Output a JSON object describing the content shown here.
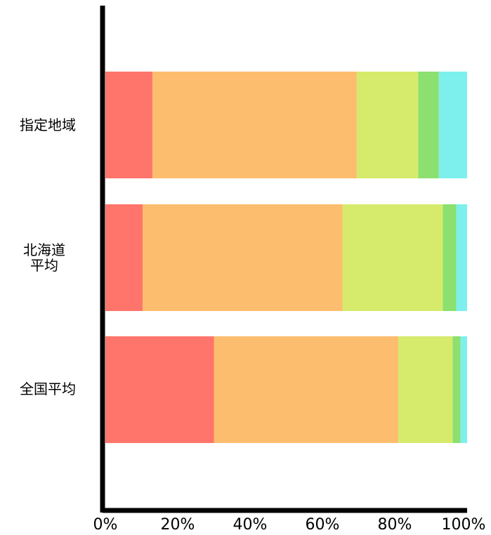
{
  "chart_data": {
    "type": "bar",
    "orientation": "horizontal",
    "stacked": true,
    "categories": [
      "指定地域",
      "北海道\n平均",
      "全国平均"
    ],
    "series": [
      {
        "color": "#ff756b",
        "values": [
          13,
          10.3,
          30
        ]
      },
      {
        "color": "#fdbd6e",
        "values": [
          56.5,
          55.3,
          51
        ]
      },
      {
        "color": "#d6eb6b",
        "values": [
          17,
          27.7,
          15
        ]
      },
      {
        "color": "#8be070",
        "values": [
          5.7,
          3.7,
          2.2
        ]
      },
      {
        "color": "#7df0ee",
        "values": [
          7.8,
          3,
          1.8
        ]
      }
    ],
    "x_ticks": [
      "0%",
      "20%",
      "40%",
      "60%",
      "80%",
      "100%"
    ],
    "xlim": [
      0,
      100
    ],
    "grid": false,
    "legend": "none",
    "title": "",
    "xlabel": "",
    "ylabel": ""
  }
}
